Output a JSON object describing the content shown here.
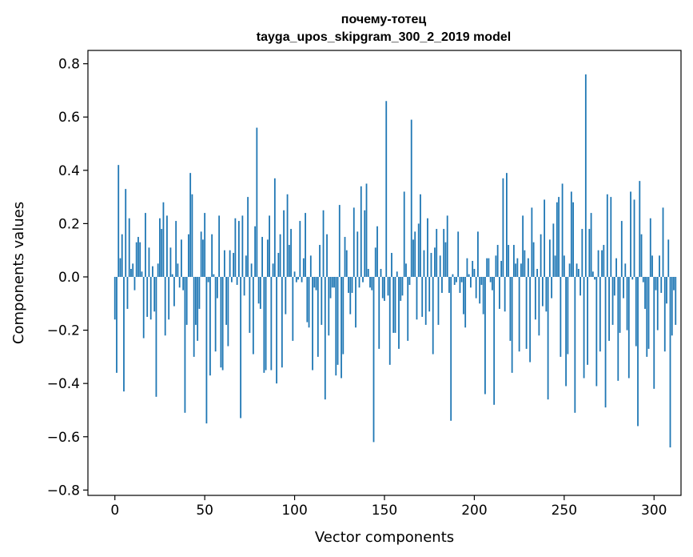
{
  "chart_data": {
    "type": "bar",
    "title": "почему-тотец",
    "subtitle": "tayga_upos_skipgram_300_2_2019 model",
    "xlabel": "Vector components",
    "ylabel": "Components values",
    "xlim": [
      -15,
      315
    ],
    "ylim": [
      -0.82,
      0.85
    ],
    "xticks": [
      0,
      50,
      100,
      150,
      200,
      250,
      300
    ],
    "yticks": [
      -0.8,
      -0.6,
      -0.4,
      -0.2,
      0.0,
      0.2,
      0.4,
      0.6,
      0.8
    ],
    "ytick_labels": [
      "−0.8",
      "−0.6",
      "−0.4",
      "−0.2",
      "0.0",
      "0.2",
      "0.4",
      "0.6",
      "0.8"
    ],
    "bar_color": "#1f77b4",
    "grid": false,
    "values": [
      -0.16,
      -0.36,
      0.42,
      0.07,
      0.16,
      -0.43,
      0.33,
      -0.12,
      0.22,
      0.03,
      0.05,
      -0.05,
      0.13,
      0.15,
      0.13,
      0.02,
      -0.23,
      0.24,
      -0.15,
      0.11,
      -0.16,
      0.04,
      -0.13,
      -0.45,
      0.05,
      0.22,
      0.18,
      0.28,
      -0.22,
      0.23,
      -0.16,
      0.11,
      0.01,
      -0.11,
      0.21,
      0.05,
      -0.04,
      0.14,
      -0.05,
      -0.51,
      -0.18,
      0.16,
      0.39,
      0.31,
      -0.3,
      -0.18,
      -0.24,
      -0.12,
      0.17,
      0.14,
      0.24,
      -0.55,
      -0.02,
      -0.37,
      0.16,
      0.01,
      -0.28,
      -0.08,
      0.23,
      -0.34,
      -0.35,
      0.1,
      -0.18,
      -0.26,
      0.1,
      -0.02,
      0.09,
      0.22,
      -0.03,
      0.21,
      -0.53,
      0.23,
      -0.07,
      0.08,
      0.3,
      -0.21,
      0.05,
      -0.29,
      0.19,
      0.56,
      -0.1,
      -0.12,
      0.15,
      -0.36,
      -0.35,
      0.14,
      0.23,
      -0.35,
      0.05,
      0.37,
      -0.4,
      0.09,
      0.16,
      -0.34,
      0.25,
      -0.14,
      0.31,
      0.12,
      0.18,
      -0.24,
      0.02,
      -0.02,
      -0.01,
      0.21,
      -0.02,
      0.07,
      0.24,
      -0.17,
      -0.19,
      0.08,
      -0.35,
      -0.04,
      -0.05,
      -0.3,
      0.12,
      -0.18,
      0.25,
      -0.46,
      0.16,
      -0.22,
      -0.08,
      -0.04,
      -0.04,
      -0.37,
      -0.33,
      0.27,
      -0.38,
      -0.29,
      0.15,
      0.1,
      -0.06,
      -0.14,
      -0.06,
      0.26,
      -0.19,
      0.17,
      -0.04,
      0.34,
      -0.02,
      0.25,
      0.35,
      0.03,
      -0.04,
      -0.05,
      -0.62,
      0.11,
      0.19,
      -0.27,
      0.03,
      -0.08,
      -0.09,
      0.66,
      -0.07,
      -0.33,
      0.09,
      -0.21,
      -0.21,
      0.02,
      -0.27,
      -0.09,
      -0.07,
      0.32,
      0.05,
      -0.24,
      -0.03,
      0.59,
      0.14,
      0.17,
      -0.16,
      0.2,
      0.31,
      -0.15,
      0.1,
      -0.18,
      0.22,
      -0.13,
      0.09,
      -0.29,
      0.11,
      0.18,
      -0.18,
      0.08,
      -0.06,
      0.18,
      0.13,
      0.23,
      -0.06,
      -0.54,
      0.01,
      -0.03,
      -0.02,
      0.17,
      -0.06,
      -0.02,
      -0.14,
      -0.19,
      0.07,
      0.01,
      -0.04,
      0.06,
      0.03,
      -0.08,
      0.17,
      -0.1,
      -0.03,
      -0.14,
      -0.44,
      0.07,
      0.07,
      -0.02,
      -0.05,
      -0.48,
      0.08,
      0.12,
      -0.12,
      0.06,
      0.37,
      -0.13,
      0.39,
      0.12,
      -0.24,
      -0.36,
      0.12,
      0.05,
      0.07,
      -0.28,
      0.05,
      0.23,
      0.1,
      -0.27,
      0.07,
      -0.32,
      0.26,
      0.13,
      -0.16,
      0.03,
      -0.22,
      0.16,
      -0.11,
      0.29,
      -0.13,
      -0.46,
      0.14,
      -0.08,
      0.2,
      0.08,
      0.28,
      0.3,
      -0.3,
      0.35,
      0.08,
      -0.41,
      -0.29,
      0.05,
      0.32,
      0.28,
      -0.51,
      0.05,
      0.03,
      -0.07,
      0.18,
      -0.38,
      0.76,
      -0.33,
      0.18,
      0.24,
      0.02,
      -0.01,
      -0.41,
      0.1,
      -0.28,
      0.1,
      0.12,
      -0.49,
      0.31,
      -0.24,
      0.3,
      -0.18,
      -0.07,
      0.07,
      -0.39,
      -0.21,
      0.21,
      -0.08,
      0.05,
      -0.2,
      -0.38,
      0.32,
      -0.01,
      0.29,
      -0.26,
      -0.56,
      0.36,
      0.16,
      -0.02,
      -0.12,
      -0.3,
      -0.27,
      0.22,
      0.08,
      -0.42,
      -0.05,
      -0.2,
      0.08,
      -0.06,
      0.26,
      -0.28,
      -0.1,
      0.14,
      -0.64,
      -0.22,
      -0.05,
      -0.18
    ]
  }
}
